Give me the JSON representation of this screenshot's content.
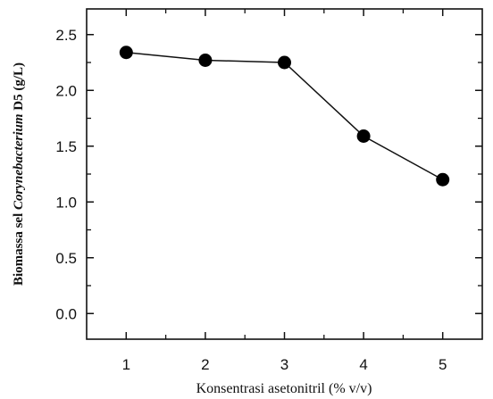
{
  "chart_data": {
    "type": "line",
    "xlabel": "Konsentrasi asetonitril (% v/v)",
    "ylabel_parts": {
      "before": "Biomassa sel ",
      "italic": "Corynebacterium",
      "after": " D5 (g/L)"
    },
    "x": [
      1,
      2,
      3,
      4,
      5
    ],
    "series": [
      {
        "values": [
          2.34,
          2.27,
          2.25,
          1.59,
          1.2
        ]
      }
    ],
    "xlim": [
      0.5,
      5.5
    ],
    "ylim": [
      -0.23,
      2.73
    ],
    "x_ticks": [
      "1",
      "2",
      "3",
      "4",
      "5"
    ],
    "y_ticks": [
      "0.0",
      "0.5",
      "1.0",
      "1.5",
      "2.0",
      "2.5"
    ],
    "grid": false,
    "legend": "none",
    "colors": {
      "line": "#111111",
      "marker": "#000000"
    }
  }
}
